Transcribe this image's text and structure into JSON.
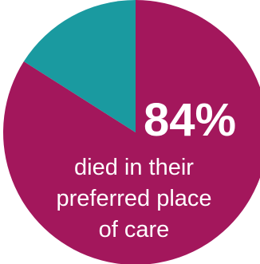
{
  "chart_data": {
    "type": "pie",
    "slices": [
      {
        "value": 84,
        "color": "#a3175c"
      },
      {
        "value": 16,
        "color": "#1a9aa0"
      }
    ],
    "headline": "84%",
    "caption_lines": [
      "died in their",
      "preferred place",
      "of care"
    ]
  }
}
